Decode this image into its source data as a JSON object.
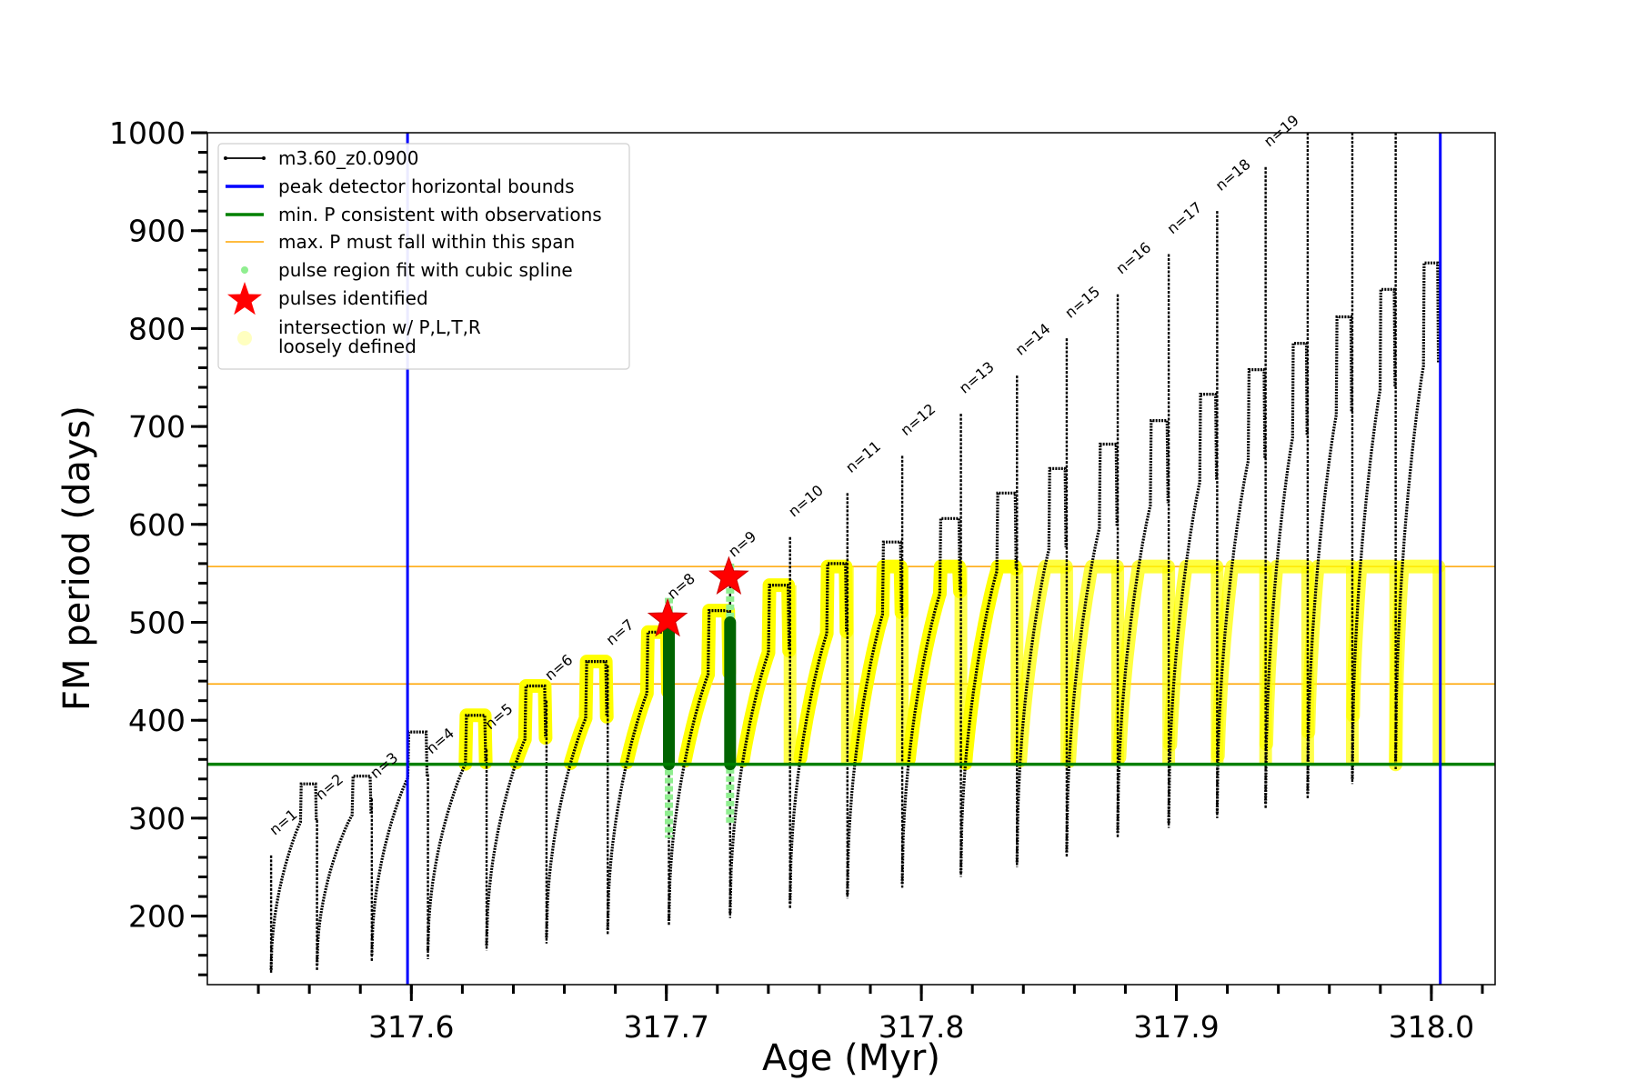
{
  "chart_data": {
    "type": "line",
    "xlabel": "Age (Myr)",
    "ylabel": "FM period (days)",
    "xlim": [
      317.52,
      318.025
    ],
    "ylim": [
      130,
      1000
    ],
    "xticks": [
      317.6,
      317.7,
      317.8,
      317.9,
      318.0
    ],
    "xtick_labels": [
      "317.6",
      "317.7",
      "317.8",
      "317.9",
      "318.0"
    ],
    "yticks": [
      200,
      300,
      400,
      500,
      600,
      700,
      800,
      900,
      1000
    ],
    "ytick_labels": [
      "200",
      "300",
      "400",
      "500",
      "600",
      "700",
      "800",
      "900",
      "1000"
    ],
    "x_minor_step": 0.02,
    "y_minor_step": 20,
    "series_name": "m3.60_z0.0900",
    "pulses": [
      {
        "label": "n=1",
        "age": 317.545,
        "spike": 262,
        "min": 142,
        "dip": 145,
        "peak": 0,
        "end": 317.563
      },
      {
        "label": "n=2",
        "age": 317.563,
        "spike": 298,
        "min": 145,
        "dip": 150,
        "peak": 335,
        "end": 317.5845
      },
      {
        "label": "n=3",
        "age": 317.5845,
        "spike": 320,
        "min": 153,
        "dip": 160,
        "peak": 343,
        "end": 317.6065
      },
      {
        "label": "n=4",
        "age": 317.6065,
        "spike": 345,
        "min": 156,
        "dip": 165,
        "peak": 388,
        "end": 317.6295
      },
      {
        "label": "n=5",
        "age": 317.6295,
        "spike": 370,
        "min": 165,
        "dip": 170,
        "peak": 405,
        "end": 317.653
      },
      {
        "label": "n=6",
        "age": 317.653,
        "spike": 420,
        "min": 172,
        "dip": 178,
        "peak": 435,
        "end": 317.677
      },
      {
        "label": "n=7",
        "age": 317.677,
        "spike": 456,
        "min": 181,
        "dip": 186,
        "peak": 460,
        "end": 317.701
      },
      {
        "label": "n=8",
        "age": 317.701,
        "spike": 503,
        "min": 190,
        "dip": 195,
        "peak": 490,
        "end": 317.725
      },
      {
        "label": "n=9",
        "age": 317.725,
        "spike": 546,
        "min": 198,
        "dip": 203,
        "peak": 512,
        "end": 317.7485
      },
      {
        "label": "n=10",
        "age": 317.7485,
        "spike": 587,
        "min": 208,
        "dip": 213,
        "peak": 538,
        "end": 317.771
      },
      {
        "label": "n=11",
        "age": 317.771,
        "spike": 632,
        "min": 218,
        "dip": 222,
        "peak": 560,
        "end": 317.7925
      },
      {
        "label": "n=12",
        "age": 317.7925,
        "spike": 670,
        "min": 229,
        "dip": 233,
        "peak": 582,
        "end": 317.8155
      },
      {
        "label": "n=13",
        "age": 317.8155,
        "spike": 713,
        "min": 240,
        "dip": 244,
        "peak": 606,
        "end": 317.8375
      },
      {
        "label": "n=14",
        "age": 317.8375,
        "spike": 752,
        "min": 250,
        "dip": 255,
        "peak": 632,
        "end": 317.857
      },
      {
        "label": "n=15",
        "age": 317.857,
        "spike": 790,
        "min": 260,
        "dip": 265,
        "peak": 657,
        "end": 317.877
      },
      {
        "label": "n=16",
        "age": 317.877,
        "spike": 835,
        "min": 280,
        "dip": 285,
        "peak": 682,
        "end": 317.897
      },
      {
        "label": "n=17",
        "age": 317.897,
        "spike": 876,
        "min": 290,
        "dip": 295,
        "peak": 706,
        "end": 317.916
      },
      {
        "label": "n=18",
        "age": 317.916,
        "spike": 920,
        "min": 300,
        "dip": 305,
        "peak": 733,
        "end": 317.935
      },
      {
        "label": "n=19",
        "age": 317.935,
        "spike": 965,
        "min": 310,
        "dip": 315,
        "peak": 758,
        "end": 317.9515
      },
      {
        "label": "",
        "age": 317.9515,
        "spike": 1000,
        "min": 320,
        "dip": 325,
        "peak": 785,
        "end": 317.969
      },
      {
        "label": "",
        "age": 317.969,
        "spike": 1000,
        "min": 335,
        "dip": 340,
        "peak": 812,
        "end": 317.986
      },
      {
        "label": "",
        "age": 317.986,
        "spike": 1000,
        "min": 350,
        "dip": 355,
        "peak": 840,
        "end": 318.003
      },
      {
        "label": "",
        "age": 318.003,
        "spike": 0,
        "min": 0,
        "dip": 0,
        "peak": 867,
        "end": 318.003
      }
    ],
    "vlines": {
      "left": 317.5985,
      "right": 318.0035,
      "color": "#0000ff"
    },
    "min_p": {
      "value": 355,
      "color": "#008000"
    },
    "max_p": {
      "low": 437,
      "high": 557,
      "color": "#ffa500"
    },
    "green_fit": [
      {
        "age": 317.701,
        "bottom": 280,
        "top": 525,
        "dark_bottom": 355,
        "dark_top": 500
      },
      {
        "age": 317.725,
        "bottom": 295,
        "top": 560,
        "dark_bottom": 355,
        "dark_top": 500
      }
    ],
    "pulses_identified": [
      {
        "age": 317.7005,
        "value": 503
      },
      {
        "age": 317.7245,
        "value": 546
      }
    ],
    "colors": {
      "curve": "#000000",
      "yellow": "#ffff00",
      "fit_light": "#90ee90",
      "fit_dark": "#006400",
      "star": "#ff0000"
    },
    "legend": [
      {
        "label": "m3.60_z0.0900",
        "kind": "line-dot",
        "color": "#000000"
      },
      {
        "label": "peak detector horizontal bounds",
        "kind": "line",
        "color": "#0000ff"
      },
      {
        "label": "min. P consistent with observations",
        "kind": "line",
        "color": "#008000"
      },
      {
        "label": "max. P must fall within this span",
        "kind": "thin-line",
        "color": "#ffa500"
      },
      {
        "label": "pulse region fit with cubic spline",
        "kind": "dot",
        "color": "#90ee90"
      },
      {
        "label": "pulses identified",
        "kind": "star",
        "color": "#ff0000"
      },
      {
        "label": "intersection w/ P,L,T,R",
        "label2": "loosely defined",
        "kind": "big-dot",
        "color": "#ffffc0"
      }
    ]
  }
}
